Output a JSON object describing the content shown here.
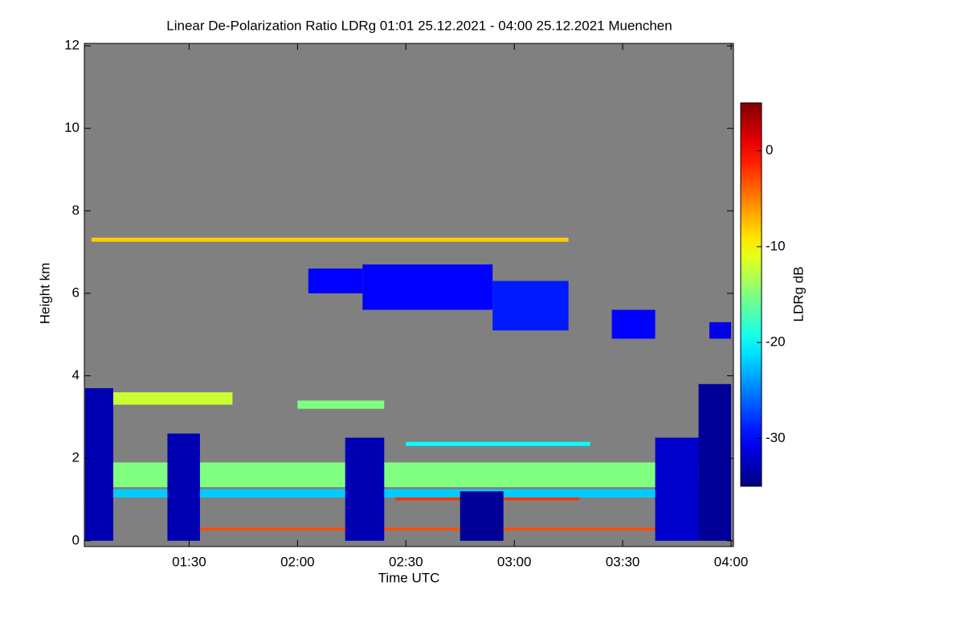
{
  "chart_data": {
    "type": "heatmap",
    "title": "Linear De-Polarization Ratio LDRg   01:01 25.12.2021 - 04:00 25.12.2021 Muenchen",
    "x_label": "Time UTC",
    "y_label": "Height km",
    "colorbar_label": "LDRg dB",
    "background": "#808080",
    "colormap": "jet",
    "xlim": [
      1.0167,
      4.011
    ],
    "xticks": [
      {
        "value": 1.5,
        "label": "01:30"
      },
      {
        "value": 2.0,
        "label": "02:00"
      },
      {
        "value": 2.5,
        "label": "02:30"
      },
      {
        "value": 3.0,
        "label": "03:00"
      },
      {
        "value": 3.5,
        "label": "03:30"
      },
      {
        "value": 4.0,
        "label": "04:00"
      }
    ],
    "ylim": [
      -0.14,
      12.06
    ],
    "yticks": [
      0,
      2,
      4,
      6,
      8,
      10,
      12
    ],
    "zlim": [
      -35,
      5
    ],
    "zticks": [
      0,
      -10,
      -20,
      -30
    ],
    "regions": [
      {
        "time": [
          1.02,
          4.0
        ],
        "height": [
          1.3,
          1.9
        ],
        "ldr": -15
      },
      {
        "time": [
          1.1,
          1.7
        ],
        "height": [
          3.3,
          3.6
        ],
        "ldr": -12
      },
      {
        "time": [
          2.0,
          2.4
        ],
        "height": [
          3.2,
          3.4
        ],
        "ldr": -15
      },
      {
        "time": [
          2.5,
          3.35
        ],
        "height": [
          2.3,
          2.4
        ],
        "ldr": -20
      },
      {
        "time": [
          1.02,
          4.0
        ],
        "height": [
          1.05,
          1.25
        ],
        "ldr": -22
      },
      {
        "time": [
          2.45,
          3.3
        ],
        "height": [
          0.98,
          1.05
        ],
        "ldr": -2
      },
      {
        "time": [
          1.5,
          3.65
        ],
        "height": [
          0.25,
          0.32
        ],
        "ldr": -3
      },
      {
        "time": [
          1.05,
          3.25
        ],
        "height": [
          7.25,
          7.35
        ],
        "ldr": -8
      },
      {
        "time": [
          2.05,
          2.3
        ],
        "height": [
          6.0,
          6.6
        ],
        "ldr": -30
      },
      {
        "time": [
          2.3,
          2.9
        ],
        "height": [
          5.6,
          6.7
        ],
        "ldr": -30
      },
      {
        "time": [
          2.9,
          3.25
        ],
        "height": [
          5.1,
          6.3
        ],
        "ldr": -29
      },
      {
        "time": [
          3.45,
          3.65
        ],
        "height": [
          4.9,
          5.6
        ],
        "ldr": -30
      },
      {
        "time": [
          3.9,
          4.0
        ],
        "height": [
          4.9,
          5.3
        ],
        "ldr": -31
      },
      {
        "time": [
          1.02,
          1.15
        ],
        "height": [
          0,
          3.7
        ],
        "ldr": -33
      },
      {
        "time": [
          1.4,
          1.55
        ],
        "height": [
          0,
          2.6
        ],
        "ldr": -33
      },
      {
        "time": [
          2.22,
          2.4
        ],
        "height": [
          0,
          2.5
        ],
        "ldr": -33
      },
      {
        "time": [
          2.75,
          2.95
        ],
        "height": [
          0,
          1.2
        ],
        "ldr": -34
      },
      {
        "time": [
          3.65,
          3.85
        ],
        "height": [
          0,
          2.5
        ],
        "ldr": -32
      },
      {
        "time": [
          3.85,
          4.0
        ],
        "height": [
          0,
          3.8
        ],
        "ldr": -34
      }
    ]
  }
}
